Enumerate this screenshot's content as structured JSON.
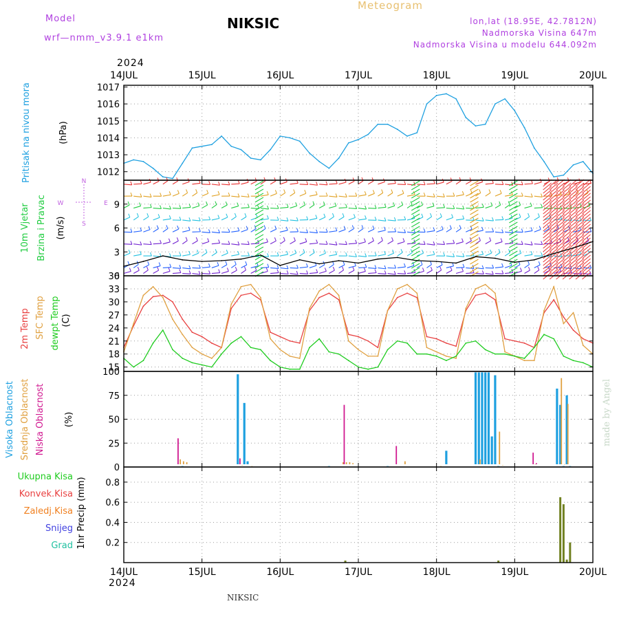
{
  "header": {
    "model_label": "Model",
    "model_name": "wrf—nmm_v3.9.1  e1km",
    "station": "NIKSIC",
    "product": "Meteogram",
    "coords": "lon,lat (18.95E, 42.7812N)",
    "elevation": "Nadmorska Visina 647m",
    "model_elevation": "Nadmorska Visina u modelu 644.092m",
    "year": "2024",
    "footer_station": "NIKSIC",
    "credit": "made by Angel"
  },
  "colors": {
    "pressure": "#1ea0e0",
    "temp2m": "#e84040",
    "sfc_temp": "#e0a040",
    "dewpoint": "#20cc20",
    "high_cloud": "#1ea0e0",
    "mid_cloud": "#e0a040",
    "low_cloud": "#d01890",
    "precip_total": "#708020",
    "wind_calm": "#7020d0",
    "wind_light": "#2060ff",
    "wind_moderate": "#20c0e0",
    "wind_fresh": "#20cc40",
    "wind_strong": "#e0a020",
    "wind_gale": "#e83030"
  },
  "chart_data": [
    {
      "type": "line",
      "panel": "pressure",
      "ylabel_lines": [
        "Pritisak na nivou mora",
        "(hPa)"
      ],
      "x_ticks": [
        "14JUL",
        "15JUL",
        "16JUL",
        "17JUL",
        "18JUL",
        "19JUL",
        "20JUL"
      ],
      "x_unit": "hours since 14JUL 00",
      "ylim": [
        1011.5,
        1017.1
      ],
      "y_ticks": [
        1012,
        1013,
        1014,
        1015,
        1016,
        1017
      ],
      "grid": true,
      "series": [
        {
          "color_key": "pressure",
          "x": [
            0,
            3,
            6,
            9,
            12,
            15,
            18,
            21,
            24,
            27,
            30,
            33,
            36,
            39,
            42,
            45,
            48,
            51,
            54,
            57,
            60,
            63,
            66,
            69,
            72,
            75,
            78,
            81,
            84,
            87,
            90,
            93,
            96,
            99,
            102,
            105,
            108,
            111,
            114,
            117,
            120,
            123,
            126,
            129,
            132,
            135,
            138,
            141,
            144
          ],
          "values": [
            1012.5,
            1012.7,
            1012.6,
            1012.2,
            1011.7,
            1011.6,
            1012.5,
            1013.4,
            1013.5,
            1013.6,
            1014.1,
            1013.5,
            1013.3,
            1012.8,
            1012.7,
            1013.3,
            1014.1,
            1014.0,
            1013.8,
            1013.1,
            1012.6,
            1012.2,
            1012.8,
            1013.7,
            1013.9,
            1014.2,
            1014.8,
            1014.8,
            1014.5,
            1014.1,
            1014.3,
            1016.0,
            1016.5,
            1016.6,
            1016.3,
            1015.2,
            1014.7,
            1014.8,
            1016.0,
            1016.3,
            1015.6,
            1014.6,
            1013.4,
            1012.6,
            1011.7,
            1011.8,
            1012.4,
            1012.6,
            1011.9
          ]
        }
      ]
    },
    {
      "type": "line",
      "panel": "wind",
      "ylabel_lines": [
        "10m Vjetar",
        "Brzina i Pravac",
        "(m/s)"
      ],
      "compass": [
        "N",
        "E",
        "S",
        "W"
      ],
      "ylim": [
        0,
        12
      ],
      "y_ticks": [
        0,
        3,
        6,
        9
      ],
      "grid": true,
      "series": [
        {
          "name": "10m wind speed",
          "color": "#000000",
          "x": [
            0,
            6,
            12,
            18,
            24,
            30,
            36,
            42,
            48,
            54,
            60,
            66,
            72,
            78,
            84,
            90,
            96,
            102,
            108,
            114,
            120,
            126,
            132,
            138,
            144
          ],
          "values": [
            1.2,
            1.8,
            2.5,
            2.0,
            1.8,
            1.9,
            2.1,
            2.6,
            1.3,
            2.0,
            1.5,
            1.9,
            1.6,
            2.1,
            2.3,
            1.9,
            1.8,
            1.6,
            2.4,
            2.2,
            1.7,
            2.0,
            2.8,
            3.5,
            4.3
          ]
        }
      ],
      "barb_rows": [
        {
          "height": 11.5,
          "color_key": "wind_gale"
        },
        {
          "height": 10.0,
          "color_key": "wind_strong"
        },
        {
          "height": 8.5,
          "color_key": "wind_fresh"
        },
        {
          "height": 7.0,
          "color_key": "wind_moderate"
        },
        {
          "height": 5.5,
          "color_key": "wind_light"
        },
        {
          "height": 4.0,
          "color_key": "wind_calm"
        },
        {
          "height": 2.5,
          "color_key": "wind_moderate"
        },
        {
          "height": 1.0,
          "color_key": "wind_light"
        },
        {
          "height": 0.3,
          "color_key": "wind_calm"
        }
      ]
    },
    {
      "type": "line",
      "panel": "temperature",
      "ylabel_lines": [
        "2m Temp",
        "SFC Temp",
        "dewpt Temp",
        "(C)"
      ],
      "ylim": [
        14,
        36
      ],
      "y_ticks": [
        15,
        18,
        21,
        24,
        27,
        30,
        33,
        36
      ],
      "grid": true,
      "series": [
        {
          "name": "2m Temp",
          "color_key": "temp2m",
          "x": [
            0,
            3,
            6,
            9,
            12,
            15,
            18,
            21,
            24,
            27,
            30,
            33,
            36,
            39,
            42,
            45,
            48,
            51,
            54,
            57,
            60,
            63,
            66,
            69,
            72,
            75,
            78,
            81,
            84,
            87,
            90,
            93,
            96,
            99,
            102,
            105,
            108,
            111,
            114,
            117,
            120,
            123,
            126,
            129,
            132,
            135,
            138,
            141,
            144
          ],
          "values": [
            19.5,
            24.5,
            29.0,
            31.2,
            31.5,
            30.0,
            26.0,
            23.0,
            22.0,
            20.5,
            19.5,
            28.5,
            31.5,
            32.0,
            30.5,
            23.0,
            22.0,
            21.0,
            20.5,
            28.0,
            31.0,
            32.0,
            30.5,
            22.5,
            22.0,
            21.0,
            19.5,
            28.0,
            31.0,
            32.0,
            31.0,
            22.0,
            21.5,
            20.5,
            19.8,
            28.0,
            31.5,
            32.0,
            30.5,
            21.5,
            21.0,
            20.5,
            19.5,
            27.5,
            30.5,
            26.5,
            23.5,
            21.5,
            20.5
          ]
        },
        {
          "name": "SFC Temp",
          "color_key": "sfc_temp",
          "x": [
            0,
            3,
            6,
            9,
            12,
            15,
            18,
            21,
            24,
            27,
            30,
            33,
            36,
            39,
            42,
            45,
            48,
            51,
            54,
            57,
            60,
            63,
            66,
            69,
            72,
            75,
            78,
            81,
            84,
            87,
            90,
            93,
            96,
            99,
            102,
            105,
            108,
            111,
            114,
            117,
            120,
            123,
            126,
            129,
            132,
            135,
            138,
            141,
            144
          ],
          "values": [
            18.5,
            25.0,
            31.5,
            33.5,
            31.0,
            26.0,
            22.5,
            19.5,
            18.0,
            17.0,
            19.5,
            29.5,
            33.5,
            34.0,
            31.0,
            21.5,
            19.0,
            17.5,
            17.0,
            28.5,
            32.5,
            34.0,
            31.5,
            21.0,
            19.0,
            17.5,
            17.5,
            28.0,
            33.0,
            34.0,
            32.0,
            19.5,
            18.5,
            17.5,
            17.0,
            28.5,
            33.0,
            34.0,
            32.0,
            18.5,
            17.5,
            16.5,
            16.5,
            28.0,
            33.5,
            25.0,
            27.5,
            20.0,
            18.0
          ]
        },
        {
          "name": "dewpt Temp",
          "color_key": "dewpoint",
          "x": [
            0,
            3,
            6,
            9,
            12,
            15,
            18,
            21,
            24,
            27,
            30,
            33,
            36,
            39,
            42,
            45,
            48,
            51,
            54,
            57,
            60,
            63,
            66,
            69,
            72,
            75,
            78,
            81,
            84,
            87,
            90,
            93,
            96,
            99,
            102,
            105,
            108,
            111,
            114,
            117,
            120,
            123,
            126,
            129,
            132,
            135,
            138,
            141,
            144
          ],
          "values": [
            17.0,
            15.0,
            16.5,
            20.5,
            23.5,
            19.0,
            17.0,
            16.0,
            15.5,
            15.0,
            18.0,
            20.5,
            22.0,
            19.5,
            19.0,
            16.5,
            15.0,
            14.5,
            14.5,
            19.5,
            21.5,
            18.5,
            18.0,
            16.5,
            15.0,
            14.5,
            15.0,
            19.0,
            21.0,
            20.5,
            18.0,
            18.0,
            17.5,
            16.5,
            17.5,
            20.5,
            21.0,
            19.0,
            18.0,
            18.0,
            17.5,
            17.0,
            19.5,
            22.5,
            21.5,
            17.5,
            16.5,
            16.0,
            15.0
          ]
        }
      ]
    },
    {
      "type": "bar",
      "panel": "cloud",
      "ylabel_lines": [
        "Visoka Oblacnost",
        "Srednja Oblacnost",
        "Niska Oblacnost",
        "(%)"
      ],
      "ylim": [
        0,
        100
      ],
      "y_ticks": [
        0,
        25,
        50,
        75,
        100
      ],
      "grid": true,
      "series": [
        {
          "name": "Visoka Oblacnost",
          "color_key": "high_cloud",
          "x": [
            18,
            35,
            37,
            38,
            63,
            81,
            99,
            108,
            109,
            110,
            111,
            112,
            113,
            114,
            115,
            133,
            134,
            135,
            136,
            137
          ],
          "values": [
            1,
            97,
            67,
            6,
            1,
            1,
            17,
            99,
            99,
            99,
            99,
            99,
            32,
            96,
            1,
            82,
            65,
            1,
            75,
            1
          ]
        },
        {
          "name": "Srednja Oblacnost",
          "color_key": "mid_cloud",
          "x": [
            17,
            18,
            19,
            36,
            39,
            67,
            68,
            69,
            70,
            86,
            97,
            109,
            115,
            116,
            126,
            134,
            135,
            136
          ],
          "values": [
            8,
            6,
            5,
            2,
            1,
            5,
            5,
            5,
            4,
            6,
            1,
            8,
            37,
            2,
            3,
            93,
            3,
            66
          ]
        },
        {
          "name": "Niska Oblacnost",
          "color_key": "low_cloud",
          "x": [
            17,
            36,
            68,
            84,
            126,
            127
          ],
          "values": [
            30,
            9,
            65,
            22,
            15,
            4
          ]
        }
      ]
    },
    {
      "type": "bar",
      "panel": "precip",
      "ylabel_lines": [
        "1hr Precip (mm)"
      ],
      "legend": [
        "Ukupna Kisa",
        "Konvek.Kisa",
        "Zaledj.Kisa",
        "Snijeg",
        "Grad"
      ],
      "legend_colors": [
        "#20cc20",
        "#e84040",
        "#f08020",
        "#4040e0",
        "#20c0a0"
      ],
      "ylim": [
        0,
        0.95
      ],
      "y_ticks": [
        0.2,
        0.4,
        0.6,
        0.8
      ],
      "grid": true,
      "series": [
        {
          "name": "Ukupna Kisa",
          "color_key": "precip_total",
          "x": [
            68,
            115,
            134,
            135,
            136,
            137
          ],
          "values": [
            0.02,
            0.02,
            0.65,
            0.58,
            0.03,
            0.2
          ]
        }
      ]
    }
  ]
}
